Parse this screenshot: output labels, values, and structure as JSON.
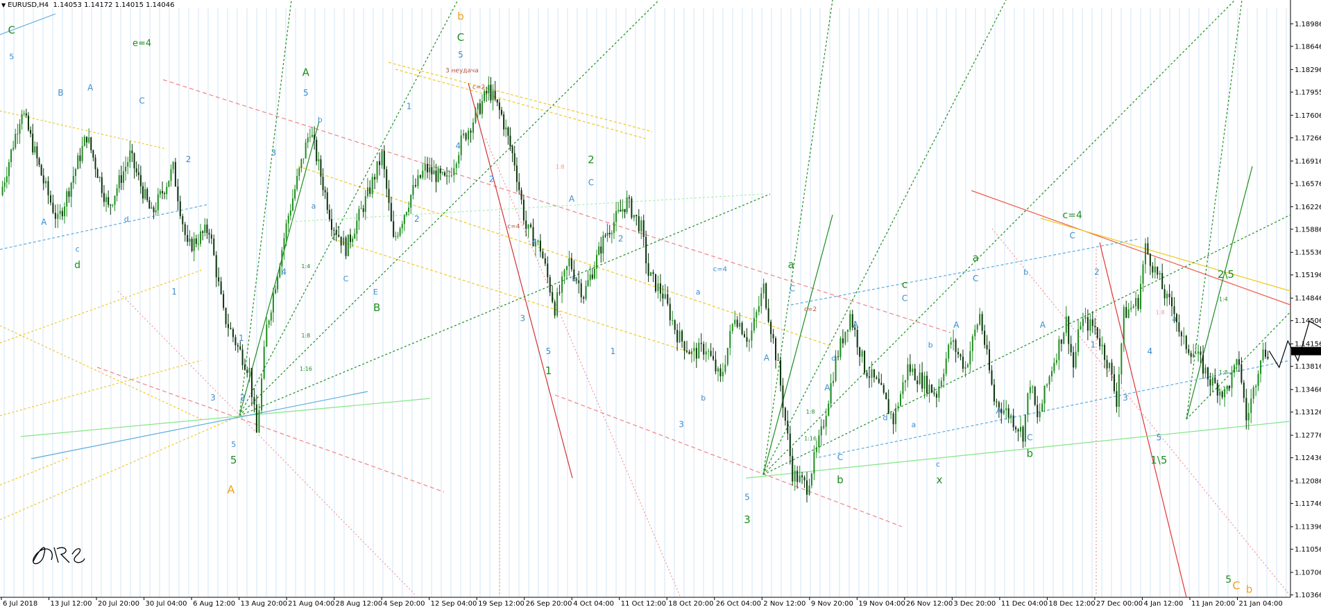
{
  "header": {
    "symbol": "EURUSD,H4",
    "quotes": "1.14053 1.14172 1.14015 1.14046"
  },
  "colors": {
    "background": "#ffffff",
    "grid": "#cfe6f7",
    "candle_up": "#1e8c1e",
    "candle_down": "#0a320a",
    "price_tag_bg": "#000000",
    "price_tag_fg": "#ffffff"
  },
  "chart_data": {
    "type": "candlestick",
    "symbol": "EURUSD",
    "timeframe": "H4",
    "ohlc_last": {
      "open": 1.14053,
      "high": 1.14172,
      "low": 1.14015,
      "close": 1.14046
    },
    "ylim": [
      1.1033,
      1.1922
    ],
    "y_ticks": [
      "1.18986",
      "1.18646",
      "1.18296",
      "1.17955",
      "1.17606",
      "1.17266",
      "1.16916",
      "1.16576",
      "1.16226",
      "1.15886",
      "1.15536",
      "1.15196",
      "1.14846",
      "1.14506",
      "1.14156",
      "1.13816",
      "1.13466",
      "1.13126",
      "1.12776",
      "1.12436",
      "1.12086",
      "1.11746",
      "1.11396",
      "1.11056",
      "1.10706",
      "1.10366"
    ],
    "current_price_label": "1.14046",
    "current_price": 1.14046,
    "x_ticks": [
      "6 Jul 2018",
      "13 Jul 12:00",
      "20 Jul 20:00",
      "30 Jul 04:00",
      "6 Aug 12:00",
      "13 Aug 20:00",
      "21 Aug 04:00",
      "28 Aug 12:00",
      "4 Sep 20:00",
      "12 Sep 04:00",
      "19 Sep 12:00",
      "26 Sep 20:00",
      "4 Oct 04:00",
      "11 Oct 12:00",
      "18 Oct 20:00",
      "26 Oct 04:00",
      "2 Nov 12:00",
      "9 Nov 20:00",
      "19 Nov 04:00",
      "26 Nov 12:00",
      "3 Dec 20:00",
      "11 Dec 04:00",
      "18 Dec 12:00",
      "27 Dec 00:00",
      "4 Jan 12:00",
      "11 Jan 20:00",
      "21 Jan 04:00"
    ],
    "price_path": [
      [
        0,
        1.164
      ],
      [
        1.5,
        1.177
      ],
      [
        3,
        1.166
      ],
      [
        4,
        1.16
      ],
      [
        6,
        1.173
      ],
      [
        7.5,
        1.162
      ],
      [
        9,
        1.17
      ],
      [
        10.5,
        1.161
      ],
      [
        12,
        1.168
      ],
      [
        13,
        1.156
      ],
      [
        14.5,
        1.159
      ],
      [
        15.5,
        1.146
      ],
      [
        16.5,
        1.141
      ],
      [
        17.3,
        1.1375
      ],
      [
        17.8,
        1.128
      ],
      [
        18.5,
        1.144
      ],
      [
        20,
        1.161
      ],
      [
        21.5,
        1.174
      ],
      [
        23,
        1.16
      ],
      [
        24,
        1.156
      ],
      [
        25.5,
        1.164
      ],
      [
        26.5,
        1.17
      ],
      [
        27.3,
        1.157
      ],
      [
        28.5,
        1.164
      ],
      [
        29.5,
        1.168
      ],
      [
        31,
        1.166
      ],
      [
        32,
        1.172
      ],
      [
        33,
        1.176
      ],
      [
        33.9,
        1.18
      ],
      [
        34.8,
        1.176
      ],
      [
        35.7,
        1.169
      ],
      [
        36.5,
        1.159
      ],
      [
        37.5,
        1.156
      ],
      [
        38.5,
        1.147
      ],
      [
        39.5,
        1.154
      ],
      [
        40.5,
        1.149
      ],
      [
        42,
        1.158
      ],
      [
        43.5,
        1.163
      ],
      [
        44.5,
        1.159
      ],
      [
        45,
        1.152
      ],
      [
        46,
        1.149
      ],
      [
        47,
        1.143
      ],
      [
        48,
        1.14
      ],
      [
        49,
        1.141
      ],
      [
        50,
        1.136
      ],
      [
        51,
        1.146
      ],
      [
        52,
        1.142
      ],
      [
        53,
        1.15
      ],
      [
        54,
        1.138
      ],
      [
        55,
        1.122
      ],
      [
        56,
        1.12
      ],
      [
        57,
        1.128
      ],
      [
        58,
        1.139
      ],
      [
        59,
        1.146
      ],
      [
        60,
        1.138
      ],
      [
        61,
        1.135
      ],
      [
        62,
        1.13
      ],
      [
        63,
        1.138
      ],
      [
        64,
        1.136
      ],
      [
        65,
        1.134
      ],
      [
        66,
        1.142
      ],
      [
        67,
        1.138
      ],
      [
        68,
        1.146
      ],
      [
        69,
        1.133
      ],
      [
        70,
        1.131
      ],
      [
        71,
        1.128
      ],
      [
        71.5,
        1.136
      ],
      [
        72,
        1.13
      ],
      [
        73,
        1.138
      ],
      [
        74,
        1.145
      ],
      [
        74.5,
        1.138
      ],
      [
        75,
        1.145
      ],
      [
        76,
        1.144
      ],
      [
        77,
        1.138
      ],
      [
        77.5,
        1.133
      ],
      [
        78,
        1.146
      ],
      [
        79,
        1.148
      ],
      [
        79.5,
        1.156
      ],
      [
        80.5,
        1.151
      ],
      [
        81,
        1.148
      ],
      [
        81.5,
        1.147
      ],
      [
        82,
        1.142
      ],
      [
        83,
        1.14
      ],
      [
        84,
        1.136
      ],
      [
        85,
        1.134
      ],
      [
        86,
        1.139
      ],
      [
        86.5,
        1.13
      ],
      [
        87,
        1.1345
      ],
      [
        87.5,
        1.14
      ],
      [
        88,
        1.1405
      ]
    ],
    "projection_path": [
      [
        88,
        1.1405
      ],
      [
        88.7,
        1.138
      ],
      [
        89.3,
        1.142
      ],
      [
        90,
        1.139
      ],
      [
        90.8,
        1.145
      ],
      [
        91.6,
        1.144
      ],
      [
        92.4,
        1.149
      ],
      [
        93,
        1.147
      ],
      [
        93.6,
        1.138
      ],
      [
        94.2,
        1.132
      ],
      [
        94.8,
        1.125
      ]
    ],
    "annotations": [
      {
        "text": "C",
        "color": "#1e8c1e",
        "size": 15,
        "xf": 0.009,
        "y": 1.1884
      },
      {
        "text": "5",
        "color": "#3c8ccd",
        "size": 11,
        "xf": 0.009,
        "y": 1.1845
      },
      {
        "text": "e=4",
        "color": "#1e8c1e",
        "size": 13,
        "xf": 0.11,
        "y": 1.1865
      },
      {
        "text": "B",
        "color": "#3c8ccd",
        "size": 12,
        "xf": 0.047,
        "y": 1.179
      },
      {
        "text": "A",
        "color": "#3c8ccd",
        "size": 12,
        "xf": 0.07,
        "y": 1.1798
      },
      {
        "text": "C",
        "color": "#3c8ccd",
        "size": 12,
        "xf": 0.11,
        "y": 1.1778
      },
      {
        "text": "A",
        "color": "#3c8ccd",
        "size": 12,
        "xf": 0.034,
        "y": 1.1595
      },
      {
        "text": "c",
        "color": "#3c8ccd",
        "size": 11,
        "xf": 0.06,
        "y": 1.1555
      },
      {
        "text": "d",
        "color": "#1e8c1e",
        "size": 14,
        "xf": 0.06,
        "y": 1.153
      },
      {
        "text": "d",
        "color": "#3c8ccd",
        "size": 11,
        "xf": 0.098,
        "y": 1.16
      },
      {
        "text": "2",
        "color": "#3c8ccd",
        "size": 12,
        "xf": 0.146,
        "y": 1.169
      },
      {
        "text": "1",
        "color": "#3c8ccd",
        "size": 12,
        "xf": 0.135,
        "y": 1.149
      },
      {
        "text": "3",
        "color": "#3c8ccd",
        "size": 12,
        "xf": 0.165,
        "y": 1.133
      },
      {
        "text": "5",
        "color": "#3c8ccd",
        "size": 11,
        "xf": 0.181,
        "y": 1.126
      },
      {
        "text": "5",
        "color": "#1e8c1e",
        "size": 15,
        "xf": 0.181,
        "y": 1.1235
      },
      {
        "text": "A",
        "color": "#f0a01e",
        "size": 16,
        "xf": 0.179,
        "y": 1.119
      },
      {
        "text": "2",
        "color": "#3c8ccd",
        "size": 12,
        "xf": 0.188,
        "y": 1.133
      },
      {
        "text": "1",
        "color": "#3c8ccd",
        "size": 12,
        "xf": 0.187,
        "y": 1.142
      },
      {
        "text": "A",
        "color": "#1e8c1e",
        "size": 15,
        "xf": 0.237,
        "y": 1.182
      },
      {
        "text": "5",
        "color": "#3c8ccd",
        "size": 12,
        "xf": 0.237,
        "y": 1.179
      },
      {
        "text": "3",
        "color": "#3c8ccd",
        "size": 12,
        "xf": 0.212,
        "y": 1.17
      },
      {
        "text": "4",
        "color": "#3c8ccd",
        "size": 12,
        "xf": 0.22,
        "y": 1.152
      },
      {
        "text": "b",
        "color": "#3c8ccd",
        "size": 11,
        "xf": 0.248,
        "y": 1.175
      },
      {
        "text": "a",
        "color": "#3c8ccd",
        "size": 11,
        "xf": 0.243,
        "y": 1.162
      },
      {
        "text": "C",
        "color": "#3c8ccd",
        "size": 11,
        "xf": 0.268,
        "y": 1.151
      },
      {
        "text": "E",
        "color": "#3c8ccd",
        "size": 11,
        "xf": 0.291,
        "y": 1.149
      },
      {
        "text": "B",
        "color": "#1e8c1e",
        "size": 15,
        "xf": 0.292,
        "y": 1.1465
      },
      {
        "text": "1",
        "color": "#3c8ccd",
        "size": 12,
        "xf": 0.317,
        "y": 1.177
      },
      {
        "text": "2",
        "color": "#3c8ccd",
        "size": 12,
        "xf": 0.323,
        "y": 1.16
      },
      {
        "text": "b",
        "color": "#f0a01e",
        "size": 15,
        "xf": 0.357,
        "y": 1.1905
      },
      {
        "text": "C",
        "color": "#1e8c1e",
        "size": 15,
        "xf": 0.357,
        "y": 1.1873
      },
      {
        "text": "5",
        "color": "#3c8ccd",
        "size": 12,
        "xf": 0.357,
        "y": 1.1848
      },
      {
        "text": "3 неудача",
        "color": "#b4503c",
        "size": 9,
        "xf": 0.358,
        "y": 1.1825
      },
      {
        "text": "c=2",
        "color": "#b4503c",
        "size": 9,
        "xf": 0.371,
        "y": 1.18
      },
      {
        "text": "4",
        "color": "#3c8ccd",
        "size": 12,
        "xf": 0.355,
        "y": 1.171
      },
      {
        "text": "2",
        "color": "#3c8ccd",
        "size": 12,
        "xf": 0.381,
        "y": 1.166
      },
      {
        "text": "c=4",
        "color": "#b4503c",
        "size": 9,
        "xf": 0.398,
        "y": 1.159
      },
      {
        "text": "4",
        "color": "#3c8ccd",
        "size": 12,
        "xf": 0.414,
        "y": 1.1565
      },
      {
        "text": "3",
        "color": "#3c8ccd",
        "size": 12,
        "xf": 0.405,
        "y": 1.145
      },
      {
        "text": "5",
        "color": "#3c8ccd",
        "size": 12,
        "xf": 0.425,
        "y": 1.14
      },
      {
        "text": "1",
        "color": "#1e8c1e",
        "size": 15,
        "xf": 0.425,
        "y": 1.137
      },
      {
        "text": "2",
        "color": "#1e8c1e",
        "size": 15,
        "xf": 0.458,
        "y": 1.1688
      },
      {
        "text": "C",
        "color": "#3c8ccd",
        "size": 12,
        "xf": 0.458,
        "y": 1.1655
      },
      {
        "text": "A",
        "color": "#3c8ccd",
        "size": 12,
        "xf": 0.443,
        "y": 1.163
      },
      {
        "text": "b",
        "color": "#3c8ccd",
        "size": 11,
        "xf": 0.445,
        "y": 1.151
      },
      {
        "text": "1",
        "color": "#3c8ccd",
        "size": 12,
        "xf": 0.475,
        "y": 1.14
      },
      {
        "text": "2",
        "color": "#3c8ccd",
        "size": 12,
        "xf": 0.481,
        "y": 1.157
      },
      {
        "text": "3",
        "color": "#3c8ccd",
        "size": 12,
        "xf": 0.528,
        "y": 1.129
      },
      {
        "text": "b",
        "color": "#3c8ccd",
        "size": 11,
        "xf": 0.545,
        "y": 1.133
      },
      {
        "text": "a",
        "color": "#3c8ccd",
        "size": 11,
        "xf": 0.541,
        "y": 1.149
      },
      {
        "text": "c=4",
        "color": "#3c8ccd",
        "size": 10,
        "xf": 0.558,
        "y": 1.1525
      },
      {
        "text": "5",
        "color": "#3c8ccd",
        "size": 12,
        "xf": 0.579,
        "y": 1.118
      },
      {
        "text": "3",
        "color": "#1e8c1e",
        "size": 15,
        "xf": 0.579,
        "y": 1.1145
      },
      {
        "text": "A",
        "color": "#3c8ccd",
        "size": 12,
        "xf": 0.594,
        "y": 1.139
      },
      {
        "text": "a",
        "color": "#1e8c1e",
        "size": 15,
        "xf": 0.613,
        "y": 1.153
      },
      {
        "text": "C",
        "color": "#3c8ccd",
        "size": 12,
        "xf": 0.614,
        "y": 1.1495
      },
      {
        "text": "c=2",
        "color": "#b4503c",
        "size": 9,
        "xf": 0.628,
        "y": 1.1465
      },
      {
        "text": "d",
        "color": "#3c8ccd",
        "size": 11,
        "xf": 0.646,
        "y": 1.139
      },
      {
        "text": "A",
        "color": "#3c8ccd",
        "size": 12,
        "xf": 0.641,
        "y": 1.1345
      },
      {
        "text": "C",
        "color": "#3c8ccd",
        "size": 12,
        "xf": 0.651,
        "y": 1.124
      },
      {
        "text": "b",
        "color": "#1e8c1e",
        "size": 15,
        "xf": 0.651,
        "y": 1.1205
      },
      {
        "text": "A",
        "color": "#3c8ccd",
        "size": 12,
        "xf": 0.663,
        "y": 1.144
      },
      {
        "text": "C",
        "color": "#3c8ccd",
        "size": 12,
        "xf": 0.701,
        "y": 1.148
      },
      {
        "text": "c",
        "color": "#1e8c1e",
        "size": 15,
        "xf": 0.701,
        "y": 1.15
      },
      {
        "text": "d",
        "color": "#3c8ccd",
        "size": 11,
        "xf": 0.686,
        "y": 1.13
      },
      {
        "text": "b",
        "color": "#3c8ccd",
        "size": 11,
        "xf": 0.721,
        "y": 1.141
      },
      {
        "text": "a",
        "color": "#3c8ccd",
        "size": 11,
        "xf": 0.708,
        "y": 1.129
      },
      {
        "text": "c",
        "color": "#3c8ccd",
        "size": 11,
        "xf": 0.727,
        "y": 1.123
      },
      {
        "text": "x",
        "color": "#1e8c1e",
        "size": 15,
        "xf": 0.728,
        "y": 1.1205
      },
      {
        "text": "A",
        "color": "#3c8ccd",
        "size": 12,
        "xf": 0.741,
        "y": 1.144
      },
      {
        "text": "a",
        "color": "#1e8c1e",
        "size": 15,
        "xf": 0.756,
        "y": 1.154
      },
      {
        "text": "C",
        "color": "#3c8ccd",
        "size": 12,
        "xf": 0.756,
        "y": 1.151
      },
      {
        "text": "A",
        "color": "#3c8ccd",
        "size": 12,
        "xf": 0.774,
        "y": 1.131
      },
      {
        "text": "b",
        "color": "#3c8ccd",
        "size": 11,
        "xf": 0.795,
        "y": 1.152
      },
      {
        "text": "A",
        "color": "#3c8ccd",
        "size": 12,
        "xf": 0.808,
        "y": 1.144
      },
      {
        "text": "C",
        "color": "#3c8ccd",
        "size": 12,
        "xf": 0.798,
        "y": 1.127
      },
      {
        "text": "b",
        "color": "#1e8c1e",
        "size": 15,
        "xf": 0.798,
        "y": 1.1245
      },
      {
        "text": "c=4",
        "color": "#1e8c1e",
        "size": 14,
        "xf": 0.831,
        "y": 1.1605
      },
      {
        "text": "C",
        "color": "#3c8ccd",
        "size": 12,
        "xf": 0.831,
        "y": 1.1575
      },
      {
        "text": "2",
        "color": "#3c8ccd",
        "size": 12,
        "xf": 0.85,
        "y": 1.152
      },
      {
        "text": "1",
        "color": "#3c8ccd",
        "size": 12,
        "xf": 0.847,
        "y": 1.141
      },
      {
        "text": "3",
        "color": "#3c8ccd",
        "size": 12,
        "xf": 0.872,
        "y": 1.133
      },
      {
        "text": "4",
        "color": "#3c8ccd",
        "size": 12,
        "xf": 0.891,
        "y": 1.14
      },
      {
        "text": "5",
        "color": "#3c8ccd",
        "size": 12,
        "xf": 0.898,
        "y": 1.127
      },
      {
        "text": "1\\5",
        "color": "#1e8c1e",
        "size": 15,
        "xf": 0.898,
        "y": 1.1235
      },
      {
        "text": "a",
        "color": "#3c8ccd",
        "size": 11,
        "xf": 0.91,
        "y": 1.145
      },
      {
        "text": "2\\5",
        "color": "#1e8c1e",
        "size": 15,
        "xf": 0.95,
        "y": 1.1515
      },
      {
        "text": "C",
        "color": "#f0a01e",
        "size": 16,
        "xf": 0.958,
        "y": 1.1045
      },
      {
        "text": "b",
        "color": "#f0a01e",
        "size": 15,
        "xf": 0.968,
        "y": 1.104
      },
      {
        "text": "5",
        "color": "#1e8c1e",
        "size": 14,
        "xf": 0.952,
        "y": 1.1055
      },
      {
        "text": "1:4",
        "color": "#1e8c1e",
        "size": 8,
        "xf": 0.237,
        "y": 1.153
      },
      {
        "text": "1:8",
        "color": "#1e8c1e",
        "size": 8,
        "xf": 0.237,
        "y": 1.1425
      },
      {
        "text": "1:16",
        "color": "#1e8c1e",
        "size": 8,
        "xf": 0.237,
        "y": 1.1375
      },
      {
        "text": "1:8",
        "color": "#1e8c1e",
        "size": 8,
        "xf": 0.628,
        "y": 1.131
      },
      {
        "text": "1:16",
        "color": "#1e8c1e",
        "size": 8,
        "xf": 0.628,
        "y": 1.127
      },
      {
        "text": "1:8",
        "color": "#1e8c1e",
        "size": 8,
        "xf": 0.948,
        "y": 1.137
      },
      {
        "text": "1:16",
        "color": "#1e8c1e",
        "size": 8,
        "xf": 0.948,
        "y": 1.1345
      },
      {
        "text": "1:4",
        "color": "#1e8c1e",
        "size": 8,
        "xf": 0.948,
        "y": 1.148
      },
      {
        "text": "1:8",
        "color": "#f09696",
        "size": 8,
        "xf": 0.434,
        "y": 1.168
      },
      {
        "text": "1:8",
        "color": "#f09696",
        "size": 8,
        "xf": 0.899,
        "y": 1.146
      }
    ]
  }
}
